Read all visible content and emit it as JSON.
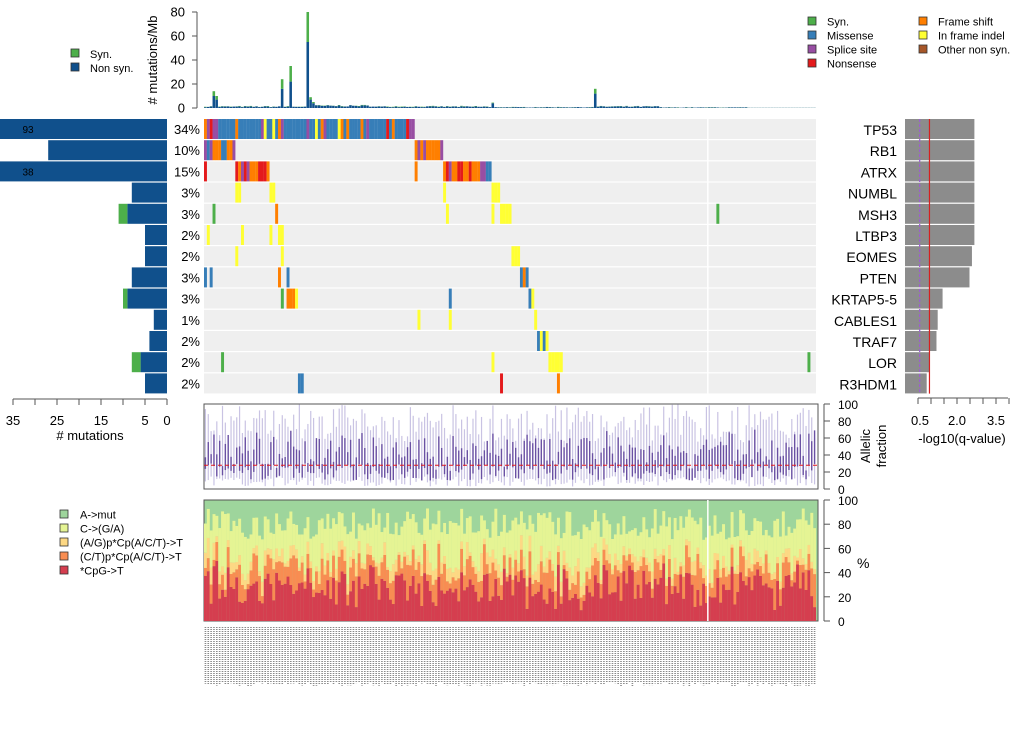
{
  "chart_data": [
    {
      "id": "tmb",
      "type": "bar",
      "title": "",
      "ylabel": "# mutations/Mb",
      "ylim": [
        0,
        80
      ],
      "yticks": [
        0,
        20,
        40,
        60,
        80
      ],
      "legend": [
        {
          "label": "Syn.",
          "color": "#4DAF4A"
        },
        {
          "label": "Non syn.",
          "color": "#10508C"
        }
      ],
      "legend_position": "left",
      "peaks": [
        {
          "sample_index": 3,
          "syn": 4,
          "nonsyn": 10
        },
        {
          "sample_index": 4,
          "syn": 3,
          "nonsyn": 7
        },
        {
          "sample_index": 27,
          "syn": 8,
          "nonsyn": 16
        },
        {
          "sample_index": 30,
          "syn": 13,
          "nonsyn": 22
        },
        {
          "sample_index": 36,
          "syn": 25,
          "nonsyn": 55
        },
        {
          "sample_index": 37,
          "syn": 2,
          "nonsyn": 7
        },
        {
          "sample_index": 38,
          "syn": 1,
          "nonsyn": 4
        },
        {
          "sample_index": 101,
          "syn": 0.5,
          "nonsyn": 4
        },
        {
          "sample_index": 137,
          "syn": 4,
          "nonsyn": 12
        }
      ],
      "baseline_nonsyn": 1.2,
      "baseline_syn": 0.4
    },
    {
      "id": "oncoprint",
      "type": "heatmap",
      "n_samples": 215,
      "genes": [
        "TP53",
        "RB1",
        "ATRX",
        "NUMBL",
        "MSH3",
        "LTBP3",
        "EOMES",
        "PTEN",
        "KRTAP5-5",
        "CABLES1",
        "TRAF7",
        "LOR",
        "R3HDM1"
      ],
      "percent_labels": [
        "34%",
        "10%",
        "15%",
        "3%",
        "3%",
        "2%",
        "2%",
        "3%",
        "3%",
        "1%",
        "2%",
        "2%",
        "2%"
      ],
      "legend": [
        {
          "label": "Syn.",
          "color": "#4DAF4A"
        },
        {
          "label": "Missense",
          "color": "#377EB8"
        },
        {
          "label": "Splice site",
          "color": "#984EA3"
        },
        {
          "label": "Nonsense",
          "color": "#E41A1C"
        },
        {
          "label": "Frame shift",
          "color": "#FF7F00"
        },
        {
          "label": "In frame indel",
          "color": "#FFFF33"
        },
        {
          "label": "Other non syn.",
          "color": "#A65628"
        }
      ],
      "legend_position": "top-right",
      "separator_sample_index": 177,
      "cells": [
        {
          "gene": 0,
          "from": 0,
          "to": 74,
          "pattern": "mixed"
        },
        {
          "gene": 1,
          "from": 0,
          "to": 11,
          "pattern": "mixed_fs"
        },
        {
          "gene": 1,
          "from": 74,
          "to": 84,
          "pattern": "mixed_fs_splice"
        },
        {
          "gene": 2,
          "from": 0,
          "to": 1,
          "type": "Nonsense"
        },
        {
          "gene": 2,
          "from": 11,
          "to": 23,
          "pattern": "mixed_fs"
        },
        {
          "gene": 2,
          "from": 74,
          "to": 75,
          "type": "Frame shift"
        },
        {
          "gene": 2,
          "from": 84,
          "to": 101,
          "pattern": "mixed_fs"
        },
        {
          "gene": 3,
          "from": 11,
          "to": 13,
          "type": "In frame indel"
        },
        {
          "gene": 3,
          "from": 23,
          "to": 25,
          "type": "In frame indel"
        },
        {
          "gene": 3,
          "from": 84,
          "to": 85,
          "type": "In frame indel"
        },
        {
          "gene": 3,
          "from": 101,
          "to": 104,
          "type": "In frame indel"
        },
        {
          "gene": 4,
          "from": 3,
          "to": 4,
          "type": "Syn."
        },
        {
          "gene": 4,
          "from": 25,
          "to": 26,
          "type": "Frame shift"
        },
        {
          "gene": 4,
          "from": 85,
          "to": 86,
          "type": "In frame indel"
        },
        {
          "gene": 4,
          "from": 101,
          "to": 102,
          "type": "In frame indel"
        },
        {
          "gene": 4,
          "from": 104,
          "to": 108,
          "type": "In frame indel"
        },
        {
          "gene": 4,
          "from": 180,
          "to": 181,
          "type": "Syn."
        },
        {
          "gene": 5,
          "from": 1,
          "to": 2,
          "type": "In frame indel"
        },
        {
          "gene": 5,
          "from": 13,
          "to": 14,
          "type": "In frame indel"
        },
        {
          "gene": 5,
          "from": 23,
          "to": 24,
          "type": "In frame indel"
        },
        {
          "gene": 5,
          "from": 26,
          "to": 28,
          "type": "In frame indel"
        },
        {
          "gene": 6,
          "from": 11,
          "to": 12,
          "type": "In frame indel"
        },
        {
          "gene": 6,
          "from": 27,
          "to": 28,
          "type": "In frame indel"
        },
        {
          "gene": 6,
          "from": 108,
          "to": 111,
          "type": "In frame indel"
        },
        {
          "gene": 7,
          "from": 0,
          "to": 1,
          "type": "Missense"
        },
        {
          "gene": 7,
          "from": 2,
          "to": 3,
          "type": "Missense"
        },
        {
          "gene": 7,
          "from": 26,
          "to": 27,
          "type": "Frame shift"
        },
        {
          "gene": 7,
          "from": 29,
          "to": 30,
          "type": "Missense"
        },
        {
          "gene": 7,
          "from": 111,
          "to": 112,
          "type": "Missense"
        },
        {
          "gene": 7,
          "from": 112,
          "to": 113,
          "type": "Frame shift"
        },
        {
          "gene": 7,
          "from": 113,
          "to": 114,
          "type": "Missense"
        },
        {
          "gene": 8,
          "from": 27,
          "to": 28,
          "type": "Syn."
        },
        {
          "gene": 8,
          "from": 29,
          "to": 32,
          "type": "Frame shift"
        },
        {
          "gene": 8,
          "from": 32,
          "to": 33,
          "type": "In frame indel"
        },
        {
          "gene": 8,
          "from": 86,
          "to": 87,
          "type": "Missense"
        },
        {
          "gene": 8,
          "from": 114,
          "to": 115,
          "type": "Missense"
        },
        {
          "gene": 8,
          "from": 115,
          "to": 116,
          "type": "In frame indel"
        },
        {
          "gene": 9,
          "from": 75,
          "to": 76,
          "type": "In frame indel"
        },
        {
          "gene": 9,
          "from": 86,
          "to": 87,
          "type": "In frame indel"
        },
        {
          "gene": 9,
          "from": 116,
          "to": 117,
          "type": "In frame indel"
        },
        {
          "gene": 10,
          "from": 117,
          "to": 118,
          "type": "Missense"
        },
        {
          "gene": 10,
          "from": 118,
          "to": 119,
          "type": "In frame indel"
        },
        {
          "gene": 10,
          "from": 119,
          "to": 120,
          "type": "Missense"
        },
        {
          "gene": 10,
          "from": 120,
          "to": 121,
          "type": "In frame indel"
        },
        {
          "gene": 11,
          "from": 6,
          "to": 7,
          "type": "Syn."
        },
        {
          "gene": 11,
          "from": 101,
          "to": 102,
          "type": "In frame indel"
        },
        {
          "gene": 11,
          "from": 121,
          "to": 126,
          "type": "In frame indel"
        },
        {
          "gene": 11,
          "from": 212,
          "to": 213,
          "type": "Syn."
        },
        {
          "gene": 12,
          "from": 33,
          "to": 35,
          "type": "Missense"
        },
        {
          "gene": 12,
          "from": 104,
          "to": 105,
          "type": "Nonsense"
        },
        {
          "gene": 12,
          "from": 124,
          "to": 125,
          "type": "Frame shift"
        }
      ]
    },
    {
      "id": "gene_counts",
      "type": "bar",
      "orientation": "horizontal",
      "xlabel": "# mutations",
      "xlim": [
        35,
        0
      ],
      "xticks": [
        35,
        25,
        15,
        5,
        0
      ],
      "xminor": [
        30,
        20,
        10
      ],
      "categories": [
        "TP53",
        "RB1",
        "ATRX",
        "NUMBL",
        "MSH3",
        "LTBP3",
        "EOMES",
        "PTEN",
        "KRTAP5-5",
        "CABLES1",
        "TRAF7",
        "LOR",
        "R3HDM1"
      ],
      "series": [
        {
          "name": "Non syn.",
          "values": [
            93,
            27,
            38,
            8,
            9,
            5,
            5,
            8,
            9,
            3,
            4,
            6,
            5
          ]
        },
        {
          "name": "Syn.",
          "values": [
            0,
            0,
            0,
            0,
            2,
            0,
            0,
            0,
            1,
            0,
            0,
            2,
            0
          ]
        }
      ],
      "bar_labels": {
        "0": "93",
        "2": "38"
      }
    },
    {
      "id": "qvalue",
      "type": "bar",
      "orientation": "horizontal",
      "xlabel": "-log10(q-value)",
      "xlim": [
        0,
        4
      ],
      "xtick_labels": [
        "0.5",
        "2.0",
        "3.5"
      ],
      "xtick_values": [
        0.5,
        2.0,
        3.5
      ],
      "xminor": [
        0,
        1.0,
        1.5,
        2.5,
        3.0,
        4.0
      ],
      "categories": [
        "TP53",
        "RB1",
        "ATRX",
        "NUMBL",
        "MSH3",
        "LTBP3",
        "EOMES",
        "PTEN",
        "KRTAP5-5",
        "CABLES1",
        "TRAF7",
        "LOR",
        "R3HDM1"
      ],
      "values": [
        3.0,
        3.0,
        3.0,
        3.0,
        3.0,
        3.0,
        2.9,
        2.8,
        1.7,
        1.5,
        1.45,
        1.15,
        1.05
      ],
      "threshold_solid": 1.0,
      "threshold_dashed": 0.6
    },
    {
      "id": "allelic_fraction",
      "type": "scatter",
      "ylabel": "Allelic fraction",
      "ylim": [
        0,
        100
      ],
      "yticks": [
        0,
        20,
        40,
        60,
        80,
        100
      ],
      "median_line": 28,
      "n_samples": 215
    },
    {
      "id": "spectrum",
      "type": "bar",
      "stacked": true,
      "ylabel": "%",
      "ylim": [
        0,
        100
      ],
      "yticks": [
        0,
        20,
        40,
        60,
        80,
        100
      ],
      "legend": [
        {
          "label": "A->mut",
          "color": "#9ED59C"
        },
        {
          "label": "C->(G/A)",
          "color": "#E5F494"
        },
        {
          "label": "(A/G)p*Cp(A/C/T)->T",
          "color": "#FDD884"
        },
        {
          "label": "(C/T)p*Cp(A/C/T)->T",
          "color": "#F88D52"
        },
        {
          "label": "*CpG->T",
          "color": "#D53E4F"
        }
      ],
      "legend_position": "left",
      "mean_fractions": [
        22,
        28,
        8,
        14,
        28
      ],
      "n_samples": 215
    }
  ]
}
